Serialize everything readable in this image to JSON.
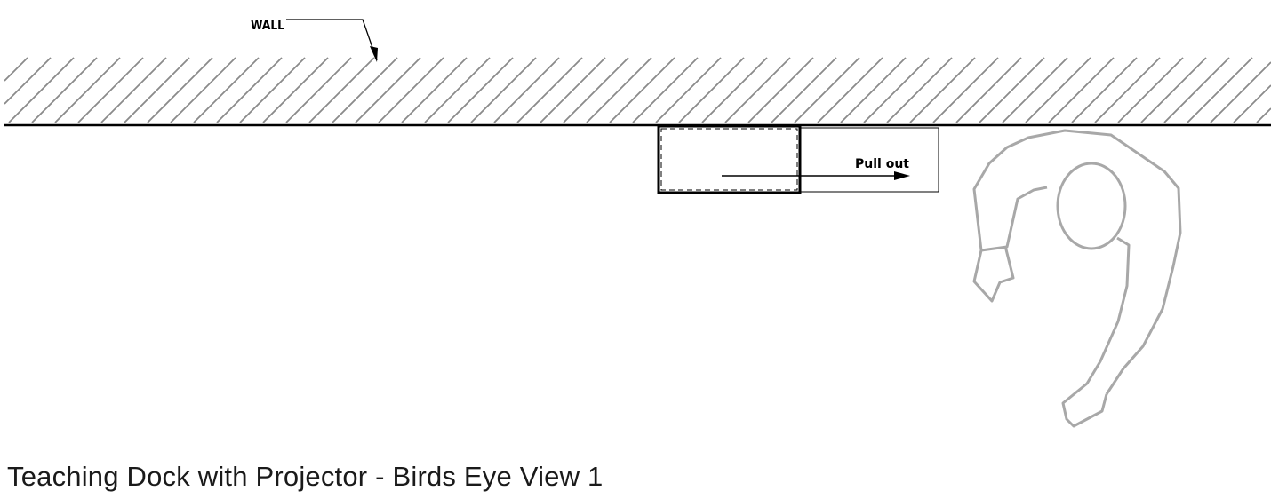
{
  "labels": {
    "wall": "WALL",
    "pull_out": "Pull out"
  },
  "caption": "Teaching Dock with Projector - Birds Eye View 1",
  "colors": {
    "line": "#000000",
    "hatch": "#8a8a8a",
    "figure": "#a8a8a8"
  }
}
